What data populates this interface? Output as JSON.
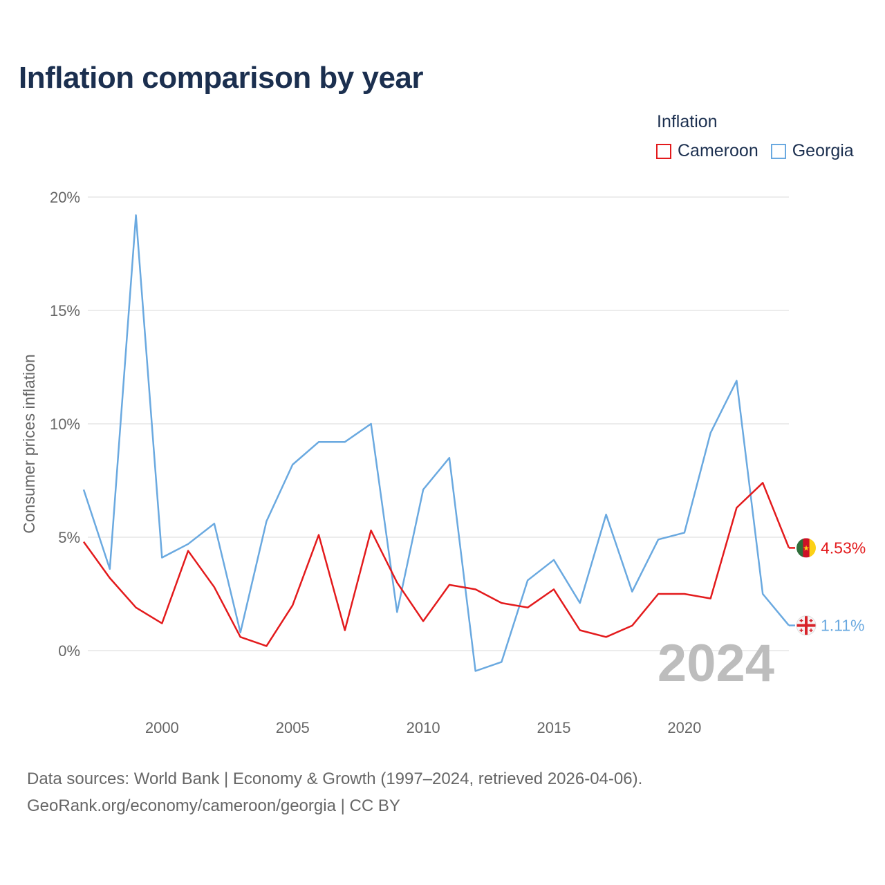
{
  "title": "Inflation comparison by year",
  "legend": {
    "title": "Inflation",
    "items": [
      {
        "label": "Cameroon",
        "color": "#e31a1c"
      },
      {
        "label": "Georgia",
        "color": "#6aa9e0"
      }
    ]
  },
  "source": {
    "line1": "Data sources: World Bank | Economy & Growth (1997–2024, retrieved 2026-04-06).",
    "line2": "GeoRank.org/economy/cameroon/georgia | CC BY"
  },
  "chart_data": {
    "type": "line",
    "title": "Inflation comparison by year",
    "xlabel": "",
    "ylabel": "Consumer prices inflation",
    "xlim": [
      1997,
      2024
    ],
    "ylim": [
      -2,
      20
    ],
    "x_ticks": [
      2000,
      2005,
      2010,
      2015,
      2020
    ],
    "y_ticks": [
      0,
      5,
      10,
      15,
      20
    ],
    "y_tick_labels": [
      "0%",
      "5%",
      "10%",
      "15%",
      "20%"
    ],
    "grid": true,
    "watermark": "2024",
    "x": [
      1997,
      1998,
      1999,
      2000,
      2001,
      2002,
      2003,
      2004,
      2005,
      2006,
      2007,
      2008,
      2009,
      2010,
      2011,
      2012,
      2013,
      2014,
      2015,
      2016,
      2017,
      2018,
      2019,
      2020,
      2021,
      2022,
      2023,
      2024
    ],
    "series": [
      {
        "name": "Cameroon",
        "color": "#e31a1c",
        "end_label": "4.53%",
        "flag": "cameroon-flag-icon",
        "values": [
          4.8,
          3.2,
          1.9,
          1.2,
          4.4,
          2.8,
          0.6,
          0.2,
          2.0,
          5.1,
          0.9,
          5.3,
          3.0,
          1.3,
          2.9,
          2.7,
          2.1,
          1.9,
          2.7,
          0.9,
          0.6,
          1.1,
          2.5,
          2.5,
          2.3,
          6.3,
          7.4,
          4.53
        ]
      },
      {
        "name": "Georgia",
        "color": "#6aa9e0",
        "end_label": "1.11%",
        "flag": "georgia-flag-icon",
        "values": [
          7.1,
          3.6,
          19.2,
          4.1,
          4.7,
          5.6,
          0.8,
          5.7,
          8.2,
          9.2,
          9.2,
          10.0,
          1.7,
          7.1,
          8.5,
          -0.9,
          -0.5,
          3.1,
          4.0,
          2.1,
          6.0,
          2.6,
          4.9,
          5.2,
          9.6,
          11.9,
          2.5,
          1.11
        ]
      }
    ]
  }
}
